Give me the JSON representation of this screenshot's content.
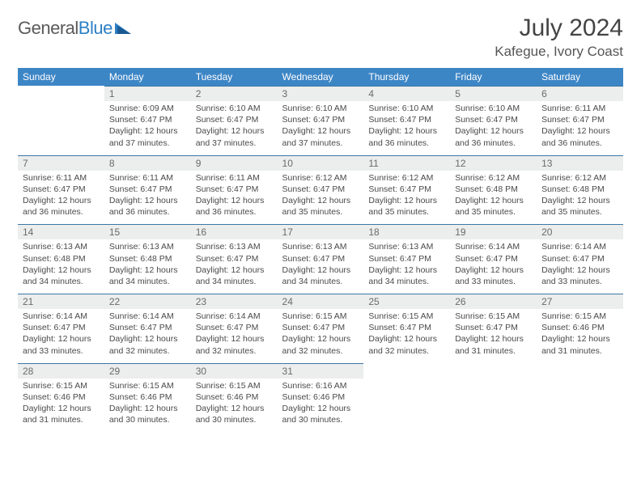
{
  "brand": {
    "part1": "General",
    "part2": "Blue"
  },
  "title": "July 2024",
  "location": "Kafegue, Ivory Coast",
  "colors": {
    "header_bg": "#3d86c6",
    "header_text": "#ffffff",
    "daynum_bg": "#eceded",
    "rule": "#3d78a6",
    "body_text": "#4a4a4a"
  },
  "weekdays": [
    "Sunday",
    "Monday",
    "Tuesday",
    "Wednesday",
    "Thursday",
    "Friday",
    "Saturday"
  ],
  "days": {
    "1": {
      "sunrise": "6:09 AM",
      "sunset": "6:47 PM",
      "daylight": "12 hours and 37 minutes."
    },
    "2": {
      "sunrise": "6:10 AM",
      "sunset": "6:47 PM",
      "daylight": "12 hours and 37 minutes."
    },
    "3": {
      "sunrise": "6:10 AM",
      "sunset": "6:47 PM",
      "daylight": "12 hours and 37 minutes."
    },
    "4": {
      "sunrise": "6:10 AM",
      "sunset": "6:47 PM",
      "daylight": "12 hours and 36 minutes."
    },
    "5": {
      "sunrise": "6:10 AM",
      "sunset": "6:47 PM",
      "daylight": "12 hours and 36 minutes."
    },
    "6": {
      "sunrise": "6:11 AM",
      "sunset": "6:47 PM",
      "daylight": "12 hours and 36 minutes."
    },
    "7": {
      "sunrise": "6:11 AM",
      "sunset": "6:47 PM",
      "daylight": "12 hours and 36 minutes."
    },
    "8": {
      "sunrise": "6:11 AM",
      "sunset": "6:47 PM",
      "daylight": "12 hours and 36 minutes."
    },
    "9": {
      "sunrise": "6:11 AM",
      "sunset": "6:47 PM",
      "daylight": "12 hours and 36 minutes."
    },
    "10": {
      "sunrise": "6:12 AM",
      "sunset": "6:47 PM",
      "daylight": "12 hours and 35 minutes."
    },
    "11": {
      "sunrise": "6:12 AM",
      "sunset": "6:47 PM",
      "daylight": "12 hours and 35 minutes."
    },
    "12": {
      "sunrise": "6:12 AM",
      "sunset": "6:48 PM",
      "daylight": "12 hours and 35 minutes."
    },
    "13": {
      "sunrise": "6:12 AM",
      "sunset": "6:48 PM",
      "daylight": "12 hours and 35 minutes."
    },
    "14": {
      "sunrise": "6:13 AM",
      "sunset": "6:48 PM",
      "daylight": "12 hours and 34 minutes."
    },
    "15": {
      "sunrise": "6:13 AM",
      "sunset": "6:48 PM",
      "daylight": "12 hours and 34 minutes."
    },
    "16": {
      "sunrise": "6:13 AM",
      "sunset": "6:47 PM",
      "daylight": "12 hours and 34 minutes."
    },
    "17": {
      "sunrise": "6:13 AM",
      "sunset": "6:47 PM",
      "daylight": "12 hours and 34 minutes."
    },
    "18": {
      "sunrise": "6:13 AM",
      "sunset": "6:47 PM",
      "daylight": "12 hours and 34 minutes."
    },
    "19": {
      "sunrise": "6:14 AM",
      "sunset": "6:47 PM",
      "daylight": "12 hours and 33 minutes."
    },
    "20": {
      "sunrise": "6:14 AM",
      "sunset": "6:47 PM",
      "daylight": "12 hours and 33 minutes."
    },
    "21": {
      "sunrise": "6:14 AM",
      "sunset": "6:47 PM",
      "daylight": "12 hours and 33 minutes."
    },
    "22": {
      "sunrise": "6:14 AM",
      "sunset": "6:47 PM",
      "daylight": "12 hours and 32 minutes."
    },
    "23": {
      "sunrise": "6:14 AM",
      "sunset": "6:47 PM",
      "daylight": "12 hours and 32 minutes."
    },
    "24": {
      "sunrise": "6:15 AM",
      "sunset": "6:47 PM",
      "daylight": "12 hours and 32 minutes."
    },
    "25": {
      "sunrise": "6:15 AM",
      "sunset": "6:47 PM",
      "daylight": "12 hours and 32 minutes."
    },
    "26": {
      "sunrise": "6:15 AM",
      "sunset": "6:47 PM",
      "daylight": "12 hours and 31 minutes."
    },
    "27": {
      "sunrise": "6:15 AM",
      "sunset": "6:46 PM",
      "daylight": "12 hours and 31 minutes."
    },
    "28": {
      "sunrise": "6:15 AM",
      "sunset": "6:46 PM",
      "daylight": "12 hours and 31 minutes."
    },
    "29": {
      "sunrise": "6:15 AM",
      "sunset": "6:46 PM",
      "daylight": "12 hours and 30 minutes."
    },
    "30": {
      "sunrise": "6:15 AM",
      "sunset": "6:46 PM",
      "daylight": "12 hours and 30 minutes."
    },
    "31": {
      "sunrise": "6:16 AM",
      "sunset": "6:46 PM",
      "daylight": "12 hours and 30 minutes."
    }
  },
  "first_weekday_index": 1,
  "num_days": 31,
  "labels": {
    "sunrise": "Sunrise:",
    "sunset": "Sunset:",
    "daylight": "Daylight:"
  }
}
